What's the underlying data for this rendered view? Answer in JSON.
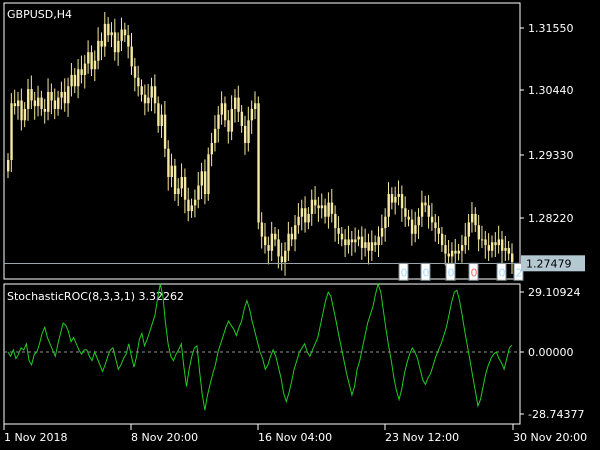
{
  "window": {
    "symbol_title": "GBPUSD,H4"
  },
  "main_pane": {
    "price_labels": [
      "1.31550",
      "1.30440",
      "1.29330",
      "1.28220"
    ],
    "current_price": "1.27479",
    "current_price_label_bg": "#b4c8d2",
    "candle_color": "#f5e8a0",
    "trade_marker_labels": [
      "0",
      "0",
      "0",
      "0",
      "0",
      "2"
    ],
    "trade_marker_colors": [
      "#a8d8ff",
      "#a8d8ff",
      "#a8d8ff",
      "#ff6a6a",
      "#a8d8ff",
      "#a8d8ff"
    ]
  },
  "indicator_pane": {
    "title": "StochasticROC(8,3,3,1) 3.32262",
    "level_labels": [
      "29.10924",
      "0.00000",
      "-28.74377"
    ],
    "line_color": "#22cc22",
    "zero_line_color": "#909090"
  },
  "time_axis": {
    "labels": [
      "1 Nov 2018",
      "8 Nov 20:00",
      "16 Nov 04:00",
      "23 Nov 12:00",
      "30 Nov 20:00"
    ]
  },
  "chart_data": [
    {
      "type": "candlestick",
      "title": "GBPUSD,H4",
      "y_ticks": [
        1.3155,
        1.3044,
        1.2933,
        1.2822
      ],
      "ylim": [
        1.2722,
        1.3205
      ],
      "current_price": 1.27479,
      "x_ticks": [
        "1 Nov 2018",
        "8 Nov 20:00",
        "16 Nov 04:00",
        "23 Nov 12:00",
        "30 Nov 20:00"
      ],
      "close_series": [
        1.293,
        1.303,
        1.3025,
        1.3035,
        1.3,
        1.302,
        1.3055,
        1.3035,
        1.3025,
        1.304,
        1.302,
        1.3015,
        1.305,
        1.3035,
        1.302,
        1.304,
        1.305,
        1.303,
        1.306,
        1.308,
        1.306,
        1.309,
        1.308,
        1.31,
        1.312,
        1.309,
        1.3105,
        1.314,
        1.313,
        1.317,
        1.315,
        1.3155,
        1.312,
        1.314,
        1.316,
        1.315,
        1.313,
        1.3095,
        1.3075,
        1.306,
        1.3045,
        1.303,
        1.304,
        1.306,
        1.303,
        1.299,
        1.301,
        1.295,
        1.29,
        1.292,
        1.287,
        1.288,
        1.29,
        1.286,
        1.284,
        1.285,
        1.286,
        1.2885,
        1.291,
        1.287,
        1.294,
        1.296,
        1.2985,
        1.301,
        1.303,
        1.3,
        1.298,
        1.302,
        1.304,
        1.3015,
        1.299,
        1.296,
        1.3,
        1.302,
        1.303,
        1.282,
        1.2795,
        1.278,
        1.277,
        1.28,
        1.279,
        1.276,
        1.275,
        1.277,
        1.28,
        1.279,
        1.2815,
        1.283,
        1.2845,
        1.282,
        1.2835,
        1.286,
        1.285,
        1.2845,
        1.285,
        1.283,
        1.2855,
        1.2835,
        1.281,
        1.28,
        1.279,
        1.278,
        1.279,
        1.2785,
        1.279,
        1.2795,
        1.2775,
        1.2785,
        1.277,
        1.2785,
        1.278,
        1.2795,
        1.281,
        1.283,
        1.287,
        1.2855,
        1.2865,
        1.287,
        1.2845,
        1.283,
        1.2825,
        1.28,
        1.2815,
        1.283,
        1.2855,
        1.285,
        1.283,
        1.282,
        1.281,
        1.28,
        1.278,
        1.2765,
        1.276,
        1.277,
        1.2765,
        1.277,
        1.278,
        1.2795,
        1.282,
        1.2835,
        1.2815,
        1.279,
        1.279,
        1.278,
        1.277,
        1.2785,
        1.278,
        1.279,
        1.277,
        1.2775,
        1.2765,
        1.275
      ]
    },
    {
      "type": "line",
      "title": "StochasticROC(8,3,3,1) 3.32262",
      "y_ticks": [
        29.10924,
        0.0,
        -28.74377
      ],
      "ylim": [
        -35,
        35
      ],
      "series": [
        {
          "values": [
            0,
            -2,
            1,
            -3,
            -1,
            2,
            1,
            4,
            -4,
            -6,
            -1,
            0,
            4,
            9,
            12,
            7,
            4,
            1,
            -2,
            4,
            9,
            14,
            13,
            10,
            5,
            7,
            4,
            1,
            -1,
            1,
            1,
            -2,
            -4,
            0,
            -3,
            -6,
            -9,
            -6,
            -2,
            1,
            2,
            -3,
            -8,
            -6,
            -3,
            -1,
            4,
            -2,
            -7,
            -2,
            6,
            9,
            3,
            6,
            10,
            14,
            18,
            26,
            33,
            27,
            14,
            4,
            -2,
            -4,
            -1,
            1,
            4,
            -7,
            -16,
            -8,
            -2,
            2,
            3,
            -9,
            -20,
            -27,
            -20,
            -15,
            -10,
            -6,
            0,
            4,
            8,
            12,
            15,
            13,
            11,
            8,
            12,
            15,
            21,
            25,
            21,
            15,
            10,
            5,
            0,
            -3,
            -8,
            -6,
            -2,
            1,
            -2,
            -7,
            -12,
            -19,
            -23,
            -19,
            -14,
            -8,
            -4,
            0,
            2,
            4,
            0,
            -2,
            1,
            4,
            7,
            13,
            19,
            25,
            29,
            27,
            21,
            15,
            8,
            2,
            -4,
            -10,
            -15,
            -20,
            -16,
            -8,
            -4,
            2,
            8,
            14,
            18,
            22,
            28,
            33,
            29,
            20,
            11,
            3,
            -4,
            -12,
            -18,
            -22,
            -17,
            -10,
            -5,
            -1,
            2,
            0,
            -3,
            -8,
            -13,
            -15,
            -12,
            -10,
            -6,
            -2,
            1,
            4,
            8,
            12,
            18,
            24,
            29,
            30,
            25,
            18,
            10,
            3,
            -4,
            -11,
            -18,
            -25,
            -22,
            -16,
            -10,
            -6,
            -3,
            -1,
            0,
            -3,
            -5,
            -8,
            -3,
            2,
            3.32262
          ]
        }
      ]
    }
  ]
}
